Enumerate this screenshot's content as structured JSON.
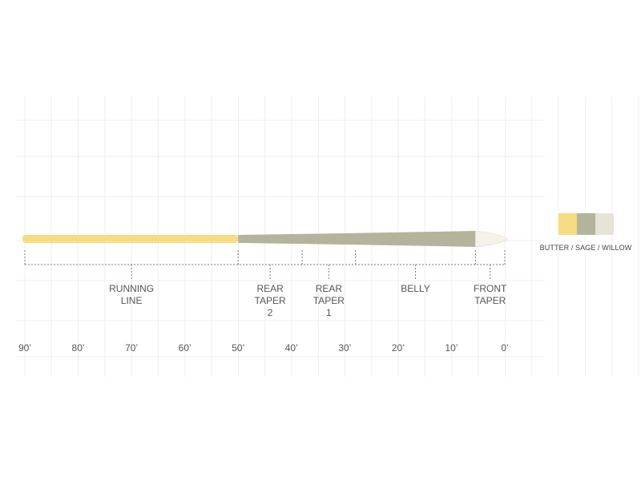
{
  "colors": {
    "butter": "#f8dc82",
    "sage": "#b3b49b",
    "willow": "#e6e3d9",
    "tip": "#f6f2e8"
  },
  "sections": [
    {
      "name": "running-line",
      "lines": [
        "RUNNING",
        "LINE"
      ],
      "from_ft": 90,
      "to_ft": 50
    },
    {
      "name": "rear-taper-2",
      "lines": [
        "REAR",
        "TAPER",
        "2"
      ],
      "from_ft": 50,
      "to_ft": 38
    },
    {
      "name": "rear-taper-1",
      "lines": [
        "REAR",
        "TAPER",
        "1"
      ],
      "from_ft": 38,
      "to_ft": 28
    },
    {
      "name": "belly",
      "lines": [
        "BELLY"
      ],
      "from_ft": 28,
      "to_ft": 5.5
    },
    {
      "name": "front-taper",
      "lines": [
        "FRONT",
        "TAPER"
      ],
      "from_ft": 5.5,
      "to_ft": 0
    }
  ],
  "scale": {
    "ticks": [
      "90’",
      "80’",
      "70’",
      "60’",
      "50’",
      "40’",
      "30’",
      "20’",
      "10’",
      "0’"
    ],
    "tick_values": [
      90,
      80,
      70,
      60,
      50,
      40,
      30,
      20,
      10,
      0
    ]
  },
  "legend": {
    "caption": "BUTTER / SAGE / WILLOW",
    "swatches": [
      "butter",
      "sage",
      "willow"
    ]
  }
}
